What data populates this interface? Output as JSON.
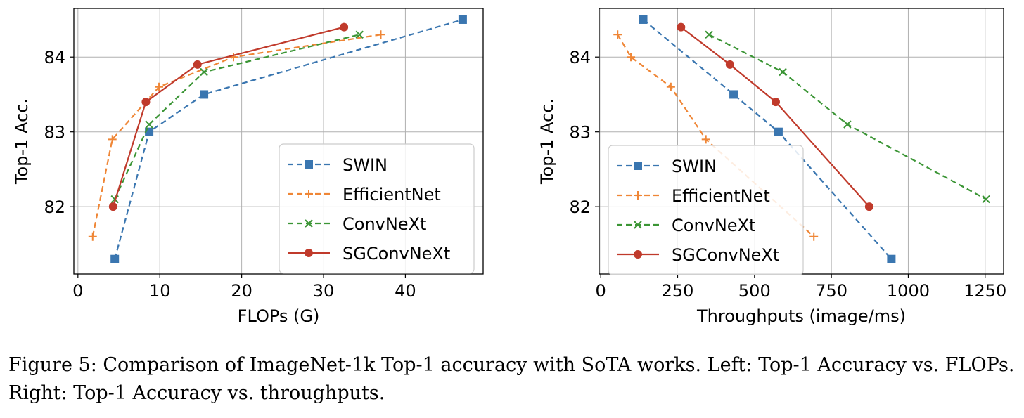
{
  "chart_data": [
    {
      "type": "line",
      "xlabel": "FLOPs (G)",
      "ylabel": "Top-1 Acc.",
      "xlim": [
        -0.5,
        49.5
      ],
      "ylim": [
        81.1,
        84.65
      ],
      "xticks": [
        0,
        10,
        20,
        30,
        40
      ],
      "yticks": [
        82,
        83,
        84
      ],
      "grid": true,
      "legend": "lower-right",
      "series": [
        {
          "name": "SWIN",
          "color": "#3a76b0",
          "dash": "dashed",
          "marker": "square",
          "x": [
            4.5,
            8.7,
            15.4,
            47.0
          ],
          "y": [
            81.3,
            83.0,
            83.5,
            84.5
          ]
        },
        {
          "name": "EfficientNet",
          "color": "#ef8636",
          "dash": "dashed",
          "marker": "plus",
          "x": [
            1.8,
            4.2,
            9.9,
            19.0,
            37.0
          ],
          "y": [
            81.6,
            82.9,
            83.6,
            84.0,
            84.3
          ]
        },
        {
          "name": "ConvNeXt",
          "color": "#3b9535",
          "dash": "dashed",
          "marker": "x",
          "x": [
            4.5,
            8.7,
            15.4,
            34.4
          ],
          "y": [
            82.1,
            83.1,
            83.8,
            84.3
          ]
        },
        {
          "name": "SGConvNeXt",
          "color": "#c03a2b",
          "dash": "solid",
          "marker": "circle",
          "x": [
            4.3,
            8.3,
            14.6,
            32.5
          ],
          "y": [
            82.0,
            83.4,
            83.9,
            84.4
          ]
        }
      ]
    },
    {
      "type": "line",
      "xlabel": "Throughputs (image/ms)",
      "ylabel": "Top-1 Acc.",
      "xlim": [
        -5,
        1310
      ],
      "ylim": [
        81.1,
        84.65
      ],
      "xticks": [
        0,
        250,
        500,
        750,
        1000,
        1250
      ],
      "yticks": [
        82,
        83,
        84
      ],
      "grid": true,
      "legend": "lower-left",
      "series": [
        {
          "name": "SWIN",
          "color": "#3a76b0",
          "dash": "dashed",
          "marker": "square",
          "x": [
            138,
            432,
            578,
            945
          ],
          "y": [
            84.5,
            83.5,
            83.0,
            81.3
          ]
        },
        {
          "name": "EfficientNet",
          "color": "#ef8636",
          "dash": "dashed",
          "marker": "plus",
          "x": [
            55,
            98,
            228,
            342,
            693
          ],
          "y": [
            84.3,
            84.0,
            83.6,
            82.9,
            81.6
          ]
        },
        {
          "name": "ConvNeXt",
          "color": "#3b9535",
          "dash": "dashed",
          "marker": "x",
          "x": [
            352,
            592,
            802,
            1253
          ],
          "y": [
            84.3,
            83.8,
            83.1,
            82.1
          ]
        },
        {
          "name": "SGConvNeXt",
          "color": "#c03a2b",
          "dash": "solid",
          "marker": "circle",
          "x": [
            261,
            420,
            569,
            873
          ],
          "y": [
            84.4,
            83.9,
            83.4,
            82.0
          ]
        }
      ]
    }
  ],
  "caption": "Figure 5: Comparison of ImageNet-1k Top-1 accuracy with SoTA works. Left: Top-1 Accuracy vs. FLOPs. Right: Top-1 Accuracy vs. throughputs."
}
